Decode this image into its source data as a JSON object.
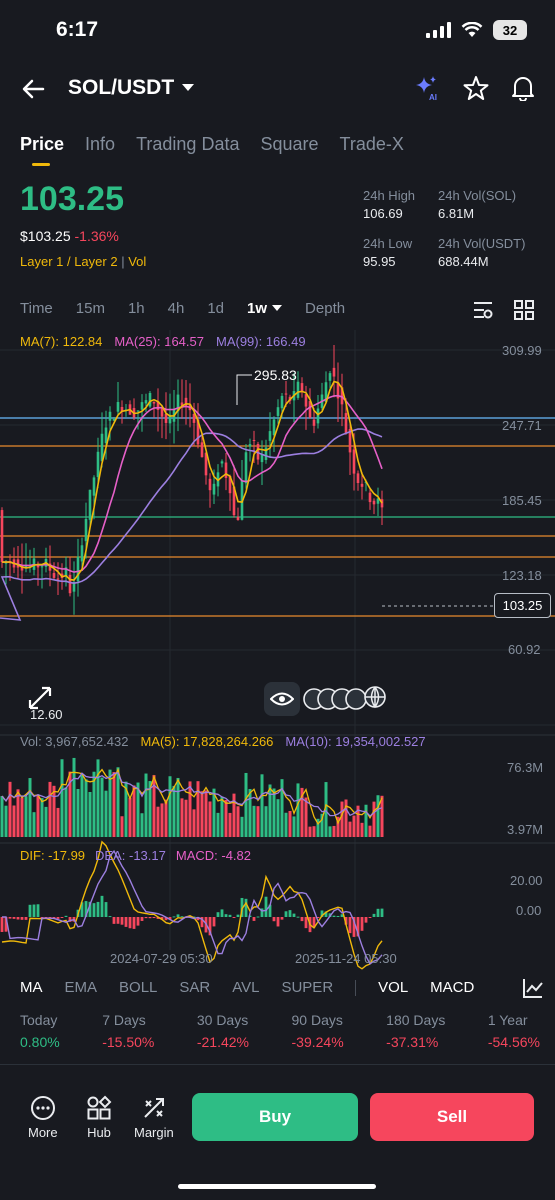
{
  "status": {
    "time": "6:17",
    "battery": "32"
  },
  "header": {
    "pair": "SOL/USDT"
  },
  "tabs": [
    "Price",
    "Info",
    "Trading Data",
    "Square",
    "Trade-X"
  ],
  "price": {
    "last": "103.25",
    "usd": "$103.25",
    "change": "-1.36%",
    "tags": "Layer 1 / Layer 2",
    "tag_extra": "Vol"
  },
  "stats": {
    "high_label": "24h High",
    "high": "106.69",
    "low_label": "24h Low",
    "low": "95.95",
    "vol_sol_label": "24h Vol(SOL)",
    "vol_sol": "6.81M",
    "vol_usdt_label": "24h Vol(USDT)",
    "vol_usdt": "688.44M"
  },
  "intervals": [
    "Time",
    "15m",
    "1h",
    "4h",
    "1d",
    "1w",
    "Depth"
  ],
  "active_interval": "1w",
  "ma_legend": {
    "ma7": "MA(7): 122.84",
    "ma25": "MA(25): 164.57",
    "ma99": "MA(99): 166.49"
  },
  "colors": {
    "ma7": "#f0b90b",
    "ma25": "#e660c8",
    "ma99": "#9c7fe0",
    "green": "#2ebd85",
    "red": "#f6465d"
  },
  "chart_data": {
    "type": "candlestick",
    "price_axis": [
      "309.99",
      "247.71",
      "185.45",
      "123.18",
      "60.92"
    ],
    "last_price": "103.25",
    "high_marker": "295.83",
    "low_marker": "12.60",
    "time_axis": [
      "2024-07-29 05:30",
      "2025-11-24 05:30"
    ],
    "volume_axis": [
      "76.3M",
      "3.97M"
    ],
    "macd_axis": [
      "20.00",
      "0.00"
    ]
  },
  "volume_legend": {
    "vol": "Vol: 3,967,652.432",
    "ma5": "MA(5): 17,828,264.266",
    "ma10": "MA(10): 19,354,002.527"
  },
  "macd_legend": {
    "dif": "DIF: -17.99",
    "dea": "DEA: -13.17",
    "macd": "MACD: -4.82"
  },
  "indicators": [
    "MA",
    "EMA",
    "BOLL",
    "SAR",
    "AVL",
    "SUPER",
    "VOL",
    "MACD"
  ],
  "performance": [
    {
      "label": "Today",
      "value": "0.80%"
    },
    {
      "label": "7 Days",
      "value": "-15.50%"
    },
    {
      "label": "30 Days",
      "value": "-21.42%"
    },
    {
      "label": "90 Days",
      "value": "-39.24%"
    },
    {
      "label": "180 Days",
      "value": "-37.31%"
    },
    {
      "label": "1 Year",
      "value": "-54.56%"
    }
  ],
  "bottom": {
    "more": "More",
    "hub": "Hub",
    "margin": "Margin",
    "buy": "Buy",
    "sell": "Sell"
  }
}
